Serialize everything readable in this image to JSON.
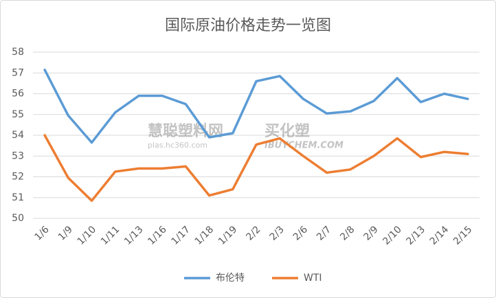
{
  "chart_data": {
    "type": "line",
    "title": "国际原油价格走势一览图",
    "categories": [
      "1/6",
      "1/9",
      "1/10",
      "1/11",
      "1/13",
      "1/16",
      "1/17",
      "1/18",
      "1/19",
      "2/2",
      "2/3",
      "2/6",
      "2/7",
      "2/8",
      "2/9",
      "2/10",
      "2/13",
      "2/14",
      "2/15"
    ],
    "series": [
      {
        "name": "布伦特",
        "color": "#5b9bd5",
        "values": [
          57.15,
          54.95,
          53.65,
          55.1,
          55.9,
          55.9,
          55.5,
          53.9,
          54.1,
          56.6,
          56.85,
          55.75,
          55.05,
          55.15,
          55.65,
          56.75,
          55.6,
          56.0,
          55.75
        ]
      },
      {
        "name": "WTI",
        "color": "#ed7d31",
        "values": [
          54.0,
          51.95,
          50.85,
          52.25,
          52.4,
          52.4,
          52.5,
          51.1,
          51.4,
          53.55,
          53.85,
          53.0,
          52.2,
          52.35,
          53.0,
          53.85,
          52.95,
          53.2,
          53.1
        ]
      }
    ],
    "ylim": [
      50,
      58
    ],
    "yticks": [
      50,
      51,
      52,
      53,
      54,
      55,
      56,
      57,
      58
    ],
    "grid": true,
    "legend": "bottom",
    "watermark": [
      "慧聪塑料网",
      "plas.hc360.com",
      "买化塑",
      "IBUYCHEM.COM"
    ]
  }
}
